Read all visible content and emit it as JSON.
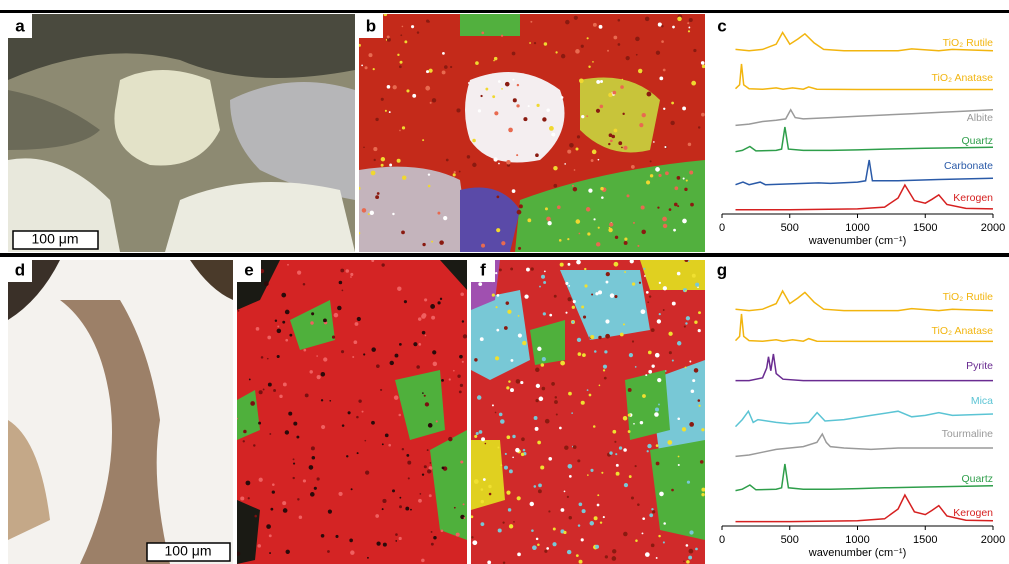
{
  "panels": [
    {
      "label": "a"
    },
    {
      "label": "b"
    },
    {
      "label": "c"
    },
    {
      "label": "d"
    },
    {
      "label": "e"
    },
    {
      "label": "f"
    },
    {
      "label": "g"
    }
  ],
  "scale_bars": [
    {
      "label": "100 μm"
    },
    {
      "label": "100 μm"
    }
  ],
  "chart_data": [
    {
      "type": "line",
      "x_label": "wavenumber (cm⁻¹)",
      "xlim": [
        0,
        2000
      ],
      "xticks": [
        0,
        500,
        1000,
        1500,
        2000
      ],
      "series": [
        {
          "name": "TiO₂ Rutile",
          "color": "#f2b50f",
          "x": [
            100,
            200,
            300,
            400,
            447,
            500,
            560,
            612,
            680,
            750,
            900,
            1100,
            1300,
            1400,
            1600,
            1700,
            2000
          ],
          "values": [
            0.1,
            0.05,
            0.1,
            0.3,
            0.75,
            0.3,
            0.5,
            0.7,
            0.35,
            0.1,
            0.05,
            0.05,
            0.05,
            0.12,
            0.05,
            0.1,
            0.05
          ]
        },
        {
          "name": "TiO₂ Anatase",
          "color": "#f2b50f",
          "x": [
            100,
            130,
            144,
            160,
            200,
            300,
            400,
            450,
            520,
            600,
            640,
            700,
            1000,
            1500,
            2000
          ],
          "values": [
            0.05,
            0.2,
            1,
            0.2,
            0.05,
            0.03,
            0.08,
            0.03,
            0.08,
            0.03,
            0.12,
            0.03,
            0.02,
            0.02,
            0.02
          ]
        },
        {
          "name": "Albite",
          "color": "#9a9a9a",
          "x": [
            100,
            200,
            300,
            400,
            470,
            507,
            540,
            600,
            800,
            1000,
            1200,
            1400,
            1600,
            1800,
            2000
          ],
          "values": [
            0.1,
            0.15,
            0.25,
            0.3,
            0.35,
            0.7,
            0.4,
            0.35,
            0.4,
            0.45,
            0.5,
            0.55,
            0.6,
            0.65,
            0.7
          ]
        },
        {
          "name": "Quartz",
          "color": "#2e9e4a",
          "x": [
            100,
            150,
            206,
            250,
            400,
            440,
            464,
            490,
            600,
            800,
            1000,
            1200,
            1500,
            2000
          ],
          "values": [
            0.05,
            0.1,
            0.25,
            0.08,
            0.1,
            0.15,
            1,
            0.15,
            0.1,
            0.1,
            0.12,
            0.15,
            0.18,
            0.22
          ]
        },
        {
          "name": "Carbonate",
          "color": "#2a5aa8",
          "x": [
            100,
            155,
            200,
            282,
            320,
            500,
            712,
            800,
            1000,
            1060,
            1086,
            1110,
            1300,
            1600,
            2000
          ],
          "values": [
            0.05,
            0.15,
            0.05,
            0.15,
            0.05,
            0.08,
            0.12,
            0.1,
            0.15,
            0.2,
            1,
            0.2,
            0.2,
            0.25,
            0.3
          ]
        },
        {
          "name": "Kerogen",
          "color": "#d62020",
          "x": [
            100,
            500,
            1000,
            1200,
            1300,
            1350,
            1420,
            1500,
            1550,
            1600,
            1660,
            1800,
            2000
          ],
          "values": [
            0.05,
            0.05,
            0.08,
            0.15,
            0.5,
            1,
            0.4,
            0.3,
            0.45,
            0.62,
            0.25,
            0.1,
            0.08
          ]
        }
      ]
    },
    {
      "type": "line",
      "x_label": "wavenumber (cm⁻¹)",
      "xlim": [
        0,
        2000
      ],
      "xticks": [
        0,
        500,
        1000,
        1500,
        2000
      ],
      "series": [
        {
          "name": "TiO₂ Rutile",
          "color": "#f2b50f",
          "x": [
            100,
            200,
            300,
            400,
            447,
            500,
            560,
            612,
            680,
            750,
            900,
            1100,
            1300,
            1400,
            1600,
            1700,
            2000
          ],
          "values": [
            0.1,
            0.05,
            0.1,
            0.3,
            0.75,
            0.3,
            0.5,
            0.7,
            0.35,
            0.1,
            0.05,
            0.05,
            0.05,
            0.12,
            0.05,
            0.1,
            0.05
          ]
        },
        {
          "name": "TiO₂ Anatase",
          "color": "#f2b50f",
          "x": [
            100,
            130,
            144,
            160,
            200,
            300,
            400,
            450,
            520,
            600,
            640,
            700,
            1000,
            1500,
            2000
          ],
          "values": [
            0.05,
            0.2,
            1,
            0.2,
            0.05,
            0.03,
            0.08,
            0.03,
            0.08,
            0.03,
            0.12,
            0.03,
            0.02,
            0.02,
            0.02
          ]
        },
        {
          "name": "Pyrite",
          "color": "#6a2c91",
          "x": [
            100,
            200,
            300,
            330,
            343,
            360,
            379,
            400,
            450,
            600,
            1000,
            1500,
            2000
          ],
          "values": [
            0.05,
            0.05,
            0.15,
            0.5,
            0.9,
            0.4,
            1,
            0.3,
            0.1,
            0.05,
            0.05,
            0.05,
            0.05
          ]
        },
        {
          "name": "Mica",
          "color": "#5bc4d4",
          "x": [
            100,
            150,
            195,
            230,
            265,
            400,
            500,
            640,
            702,
            760,
            900,
            1100,
            1300,
            1400,
            1500,
            1600,
            1700,
            2000
          ],
          "values": [
            0.05,
            0.3,
            0.6,
            0.2,
            0.3,
            0.2,
            0.15,
            0.2,
            0.55,
            0.25,
            0.3,
            0.45,
            0.6,
            0.4,
            0.45,
            0.55,
            0.45,
            0.5
          ]
        },
        {
          "name": "Tourmaline",
          "color": "#9a9a9a",
          "x": [
            100,
            200,
            300,
            400,
            600,
            700,
            740,
            770,
            800,
            900,
            1100,
            1300,
            1500,
            1700,
            2000
          ],
          "values": [
            0.2,
            0.25,
            0.35,
            0.45,
            0.55,
            0.7,
            1,
            0.7,
            0.55,
            0.5,
            0.45,
            0.5,
            0.5,
            0.5,
            0.5
          ]
        },
        {
          "name": "Quartz",
          "color": "#2e9e4a",
          "x": [
            100,
            150,
            206,
            250,
            400,
            440,
            464,
            490,
            600,
            800,
            1000,
            1200,
            1500,
            2000
          ],
          "values": [
            0.05,
            0.1,
            0.25,
            0.08,
            0.1,
            0.15,
            1,
            0.15,
            0.1,
            0.1,
            0.12,
            0.15,
            0.18,
            0.22
          ]
        },
        {
          "name": "Kerogen",
          "color": "#d62020",
          "x": [
            100,
            500,
            1000,
            1200,
            1300,
            1350,
            1420,
            1500,
            1550,
            1600,
            1660,
            1800,
            2000
          ],
          "values": [
            0.05,
            0.05,
            0.08,
            0.15,
            0.5,
            1,
            0.4,
            0.3,
            0.45,
            0.62,
            0.25,
            0.1,
            0.08
          ]
        }
      ]
    }
  ]
}
